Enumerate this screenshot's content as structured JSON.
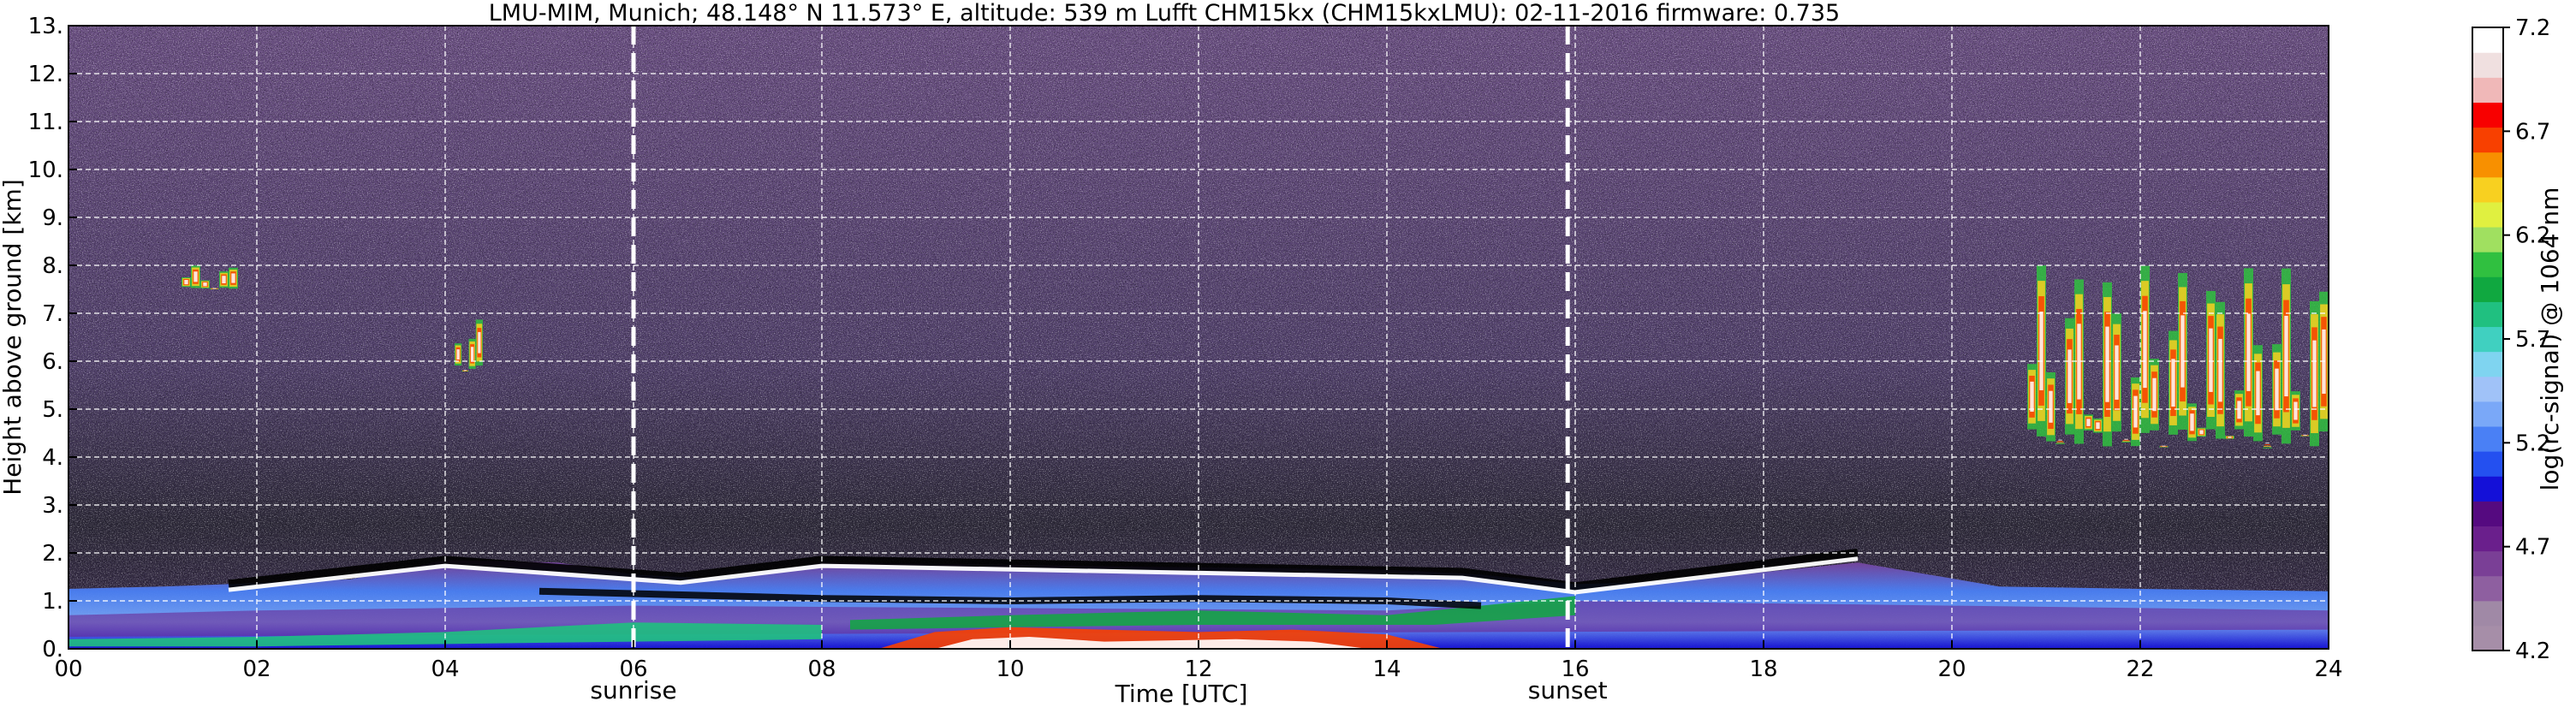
{
  "chart_data": {
    "type": "heatmap",
    "title": "LMU-MIM, Munich; 48.148° N 11.573° E, altitude: 539 m    Lufft CHM15kx (CHM15kxLMU): 02-11-2016    firmware: 0.735",
    "xlabel": "Time [UTC]",
    "ylabel": "Height above ground [km]",
    "xlim": [
      0,
      24
    ],
    "ylim": [
      0,
      13
    ],
    "x_ticks": [
      "00",
      "02",
      "04",
      "06",
      "08",
      "10",
      "12",
      "14",
      "16",
      "18",
      "20",
      "22",
      "24"
    ],
    "y_ticks": [
      "0.",
      "1.",
      "2.",
      "3.",
      "4.",
      "5.",
      "6.",
      "7.",
      "8.",
      "9.",
      "10.",
      "11.",
      "12.",
      "13."
    ],
    "grid": true,
    "colorbar": {
      "label": "log(rc-signal) @ 1064 nm",
      "range": [
        4.2,
        7.2
      ],
      "ticks": [
        "4.2",
        "4.7",
        "5.2",
        "5.7",
        "6.2",
        "6.7",
        "7.2"
      ],
      "colors": [
        "#a68ea8",
        "#a089a6",
        "#8e5fa0",
        "#7a3f96",
        "#6a1f8c",
        "#550a80",
        "#1410d8",
        "#2450f0",
        "#4a80f5",
        "#7aa8f8",
        "#a0c2f8",
        "#7fd4f0",
        "#40d0c0",
        "#20c080",
        "#10a840",
        "#30c040",
        "#a0e060",
        "#e0f040",
        "#f8d020",
        "#f89000",
        "#f84000",
        "#f80000",
        "#f0b8b8",
        "#f0e0e0",
        "#ffffff"
      ]
    },
    "annotations": [
      {
        "x": 6.0,
        "label": "sunrise",
        "style": "dashed-white-vertical"
      },
      {
        "x": 15.92,
        "label": "sunset",
        "style": "dashed-white-vertical"
      }
    ],
    "features": [
      {
        "name": "boundary-layer",
        "x_range": [
          0,
          24
        ],
        "height_km": [
          0,
          1.3
        ]
      },
      {
        "name": "residual-layer-top",
        "points": [
          [
            1.7,
            1.35
          ],
          [
            4.0,
            1.85
          ],
          [
            6.5,
            1.5
          ],
          [
            8.0,
            1.85
          ],
          [
            14.8,
            1.6
          ],
          [
            16.0,
            1.3
          ],
          [
            19.0,
            2.0
          ]
        ]
      },
      {
        "name": "cirrus-early",
        "x_range": [
          1.2,
          1.8
        ],
        "height_km": [
          7.5,
          8.0
        ]
      },
      {
        "name": "cirrus-04h",
        "x_range": [
          4.1,
          4.4
        ],
        "height_km": [
          5.8,
          6.9
        ]
      },
      {
        "name": "cirrus-late",
        "x_range": [
          20.8,
          24
        ],
        "height_km": [
          4.2,
          8.0
        ]
      }
    ]
  }
}
